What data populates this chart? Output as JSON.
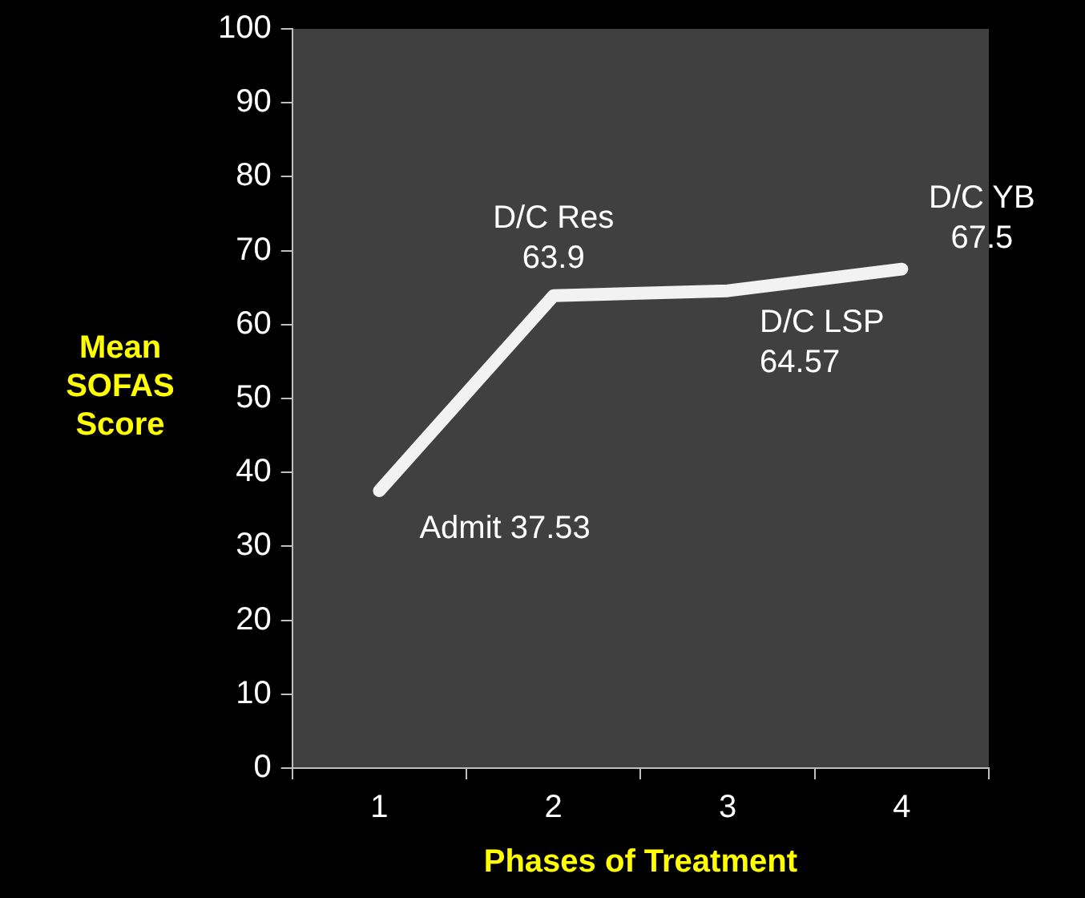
{
  "chart_data": {
    "type": "line",
    "xlabel": "Phases of Treatment",
    "ylabel": "Mean\nSOFAS\nScore",
    "categories": [
      "1",
      "2",
      "3",
      "4"
    ],
    "series": [
      {
        "color": "#f2f2f2",
        "values": [
          37.53,
          63.9,
          64.57,
          67.5
        ]
      }
    ],
    "ylim": [
      0,
      100
    ],
    "yticks": [
      0,
      10,
      20,
      30,
      40,
      50,
      60,
      70,
      80,
      90,
      100
    ],
    "grid": false,
    "legend": false,
    "marker": "none",
    "annotations": [
      {
        "text": "Admit 37.53",
        "x": "1",
        "y": 37.53
      },
      {
        "text": "D/C Res\n63.9",
        "x": "2",
        "y": 63.9
      },
      {
        "text": "D/C LSP\n64.57",
        "x": "3",
        "y": 64.57
      },
      {
        "text": "D/C YB\n67.5",
        "x": "4",
        "y": 67.5
      }
    ]
  }
}
